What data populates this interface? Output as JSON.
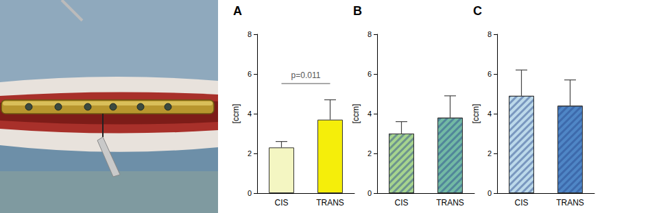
{
  "chart_data": [
    {
      "type": "bar",
      "title": "A",
      "categories": [
        "CIS",
        "TRANS"
      ],
      "values": [
        2.3,
        3.7
      ],
      "errors": [
        0.3,
        1.0
      ],
      "colors": [
        "#f4f6c2",
        "#f5ee0a"
      ],
      "ylabel": "[ccm]",
      "ylim": [
        0,
        8
      ],
      "yticks": [
        0,
        2,
        4,
        6,
        8
      ],
      "grid": false,
      "annotation": "p=0.011"
    },
    {
      "type": "bar",
      "title": "B",
      "categories": [
        "CIS",
        "TRANS"
      ],
      "values": [
        3.0,
        3.8
      ],
      "errors": [
        0.6,
        1.1
      ],
      "colors": [
        "#a6d48e",
        "#72b9a4"
      ],
      "ylabel": "[ccm]",
      "ylim": [
        0,
        8
      ],
      "yticks": [
        0,
        2,
        4,
        6,
        8
      ],
      "grid": false
    },
    {
      "type": "bar",
      "title": "C",
      "categories": [
        "CIS",
        "TRANS"
      ],
      "values": [
        4.9,
        4.4
      ],
      "errors": [
        1.3,
        1.3
      ],
      "colors": [
        "#bcd9ea",
        "#4f86c6"
      ],
      "ylabel": "[ccm]",
      "ylim": [
        0,
        8
      ],
      "yticks": [
        0,
        2,
        4,
        6,
        8
      ],
      "grid": false
    }
  ]
}
